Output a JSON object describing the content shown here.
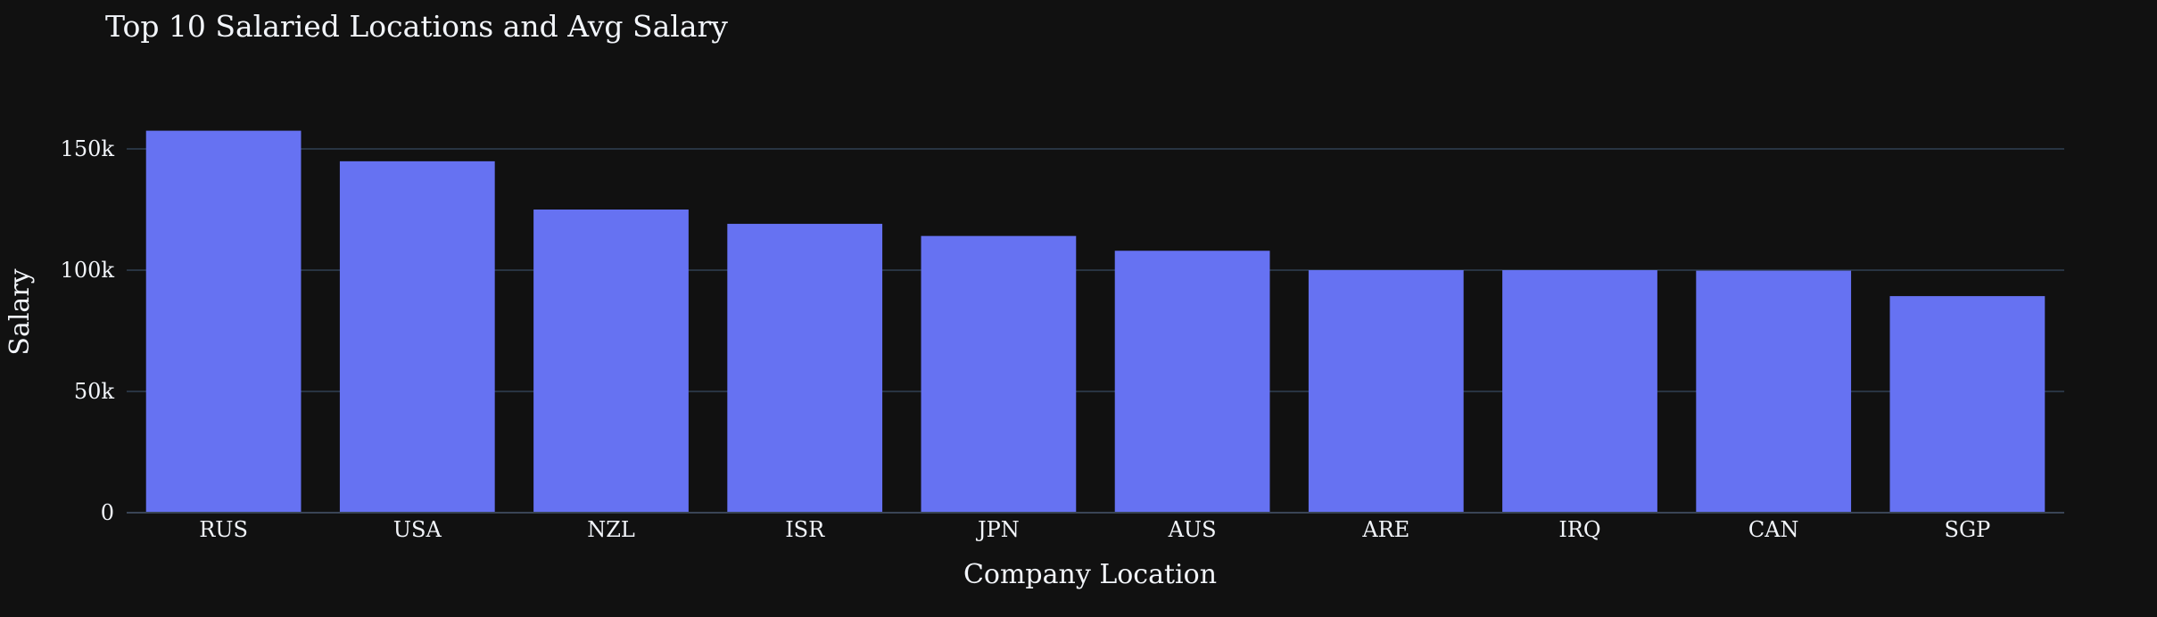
{
  "chart_data": {
    "type": "bar",
    "title": "Top 10 Salaried Locations and Avg Salary",
    "xlabel": "Company Location",
    "ylabel": "Salary",
    "categories": [
      "RUS",
      "USA",
      "NZL",
      "ISR",
      "JPN",
      "AUS",
      "ARE",
      "IRQ",
      "CAN",
      "SGP"
    ],
    "values": [
      157500,
      144900,
      125000,
      119100,
      114100,
      108000,
      100000,
      100000,
      99800,
      89300
    ],
    "ylim": [
      0,
      150000
    ],
    "y_ticks": [
      0,
      50000,
      100000,
      150000
    ],
    "y_tick_labels": [
      "0",
      "50k",
      "100k",
      "150k"
    ],
    "grid": true,
    "legend": "none",
    "colors": {
      "background": "#111111",
      "bar": "#6672f2",
      "grid": "#283442",
      "text": "#f2f5fa"
    }
  }
}
